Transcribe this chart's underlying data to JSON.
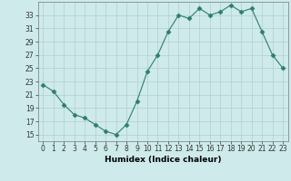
{
  "x": [
    0,
    1,
    2,
    3,
    4,
    5,
    6,
    7,
    8,
    9,
    10,
    11,
    12,
    13,
    14,
    15,
    16,
    17,
    18,
    19,
    20,
    21,
    22,
    23
  ],
  "y": [
    22.5,
    21.5,
    19.5,
    18.0,
    17.5,
    16.5,
    15.5,
    15.0,
    16.5,
    20.0,
    24.5,
    27.0,
    30.5,
    33.0,
    32.5,
    34.0,
    33.0,
    33.5,
    34.5,
    33.5,
    34.0,
    30.5,
    27.0,
    25.0
  ],
  "line_color": "#2e7d6e",
  "marker": "D",
  "marker_size": 2.5,
  "bg_color": "#ceeaea",
  "grid_color": "#b0d0d0",
  "xlabel": "Humidex (Indice chaleur)",
  "ylim": [
    14,
    35
  ],
  "xlim": [
    -0.5,
    23.5
  ],
  "yticks": [
    15,
    17,
    19,
    21,
    23,
    25,
    27,
    29,
    31,
    33
  ],
  "xticks": [
    0,
    1,
    2,
    3,
    4,
    5,
    6,
    7,
    8,
    9,
    10,
    11,
    12,
    13,
    14,
    15,
    16,
    17,
    18,
    19,
    20,
    21,
    22,
    23
  ],
  "label_fontsize": 6.5,
  "tick_fontsize": 5.5
}
